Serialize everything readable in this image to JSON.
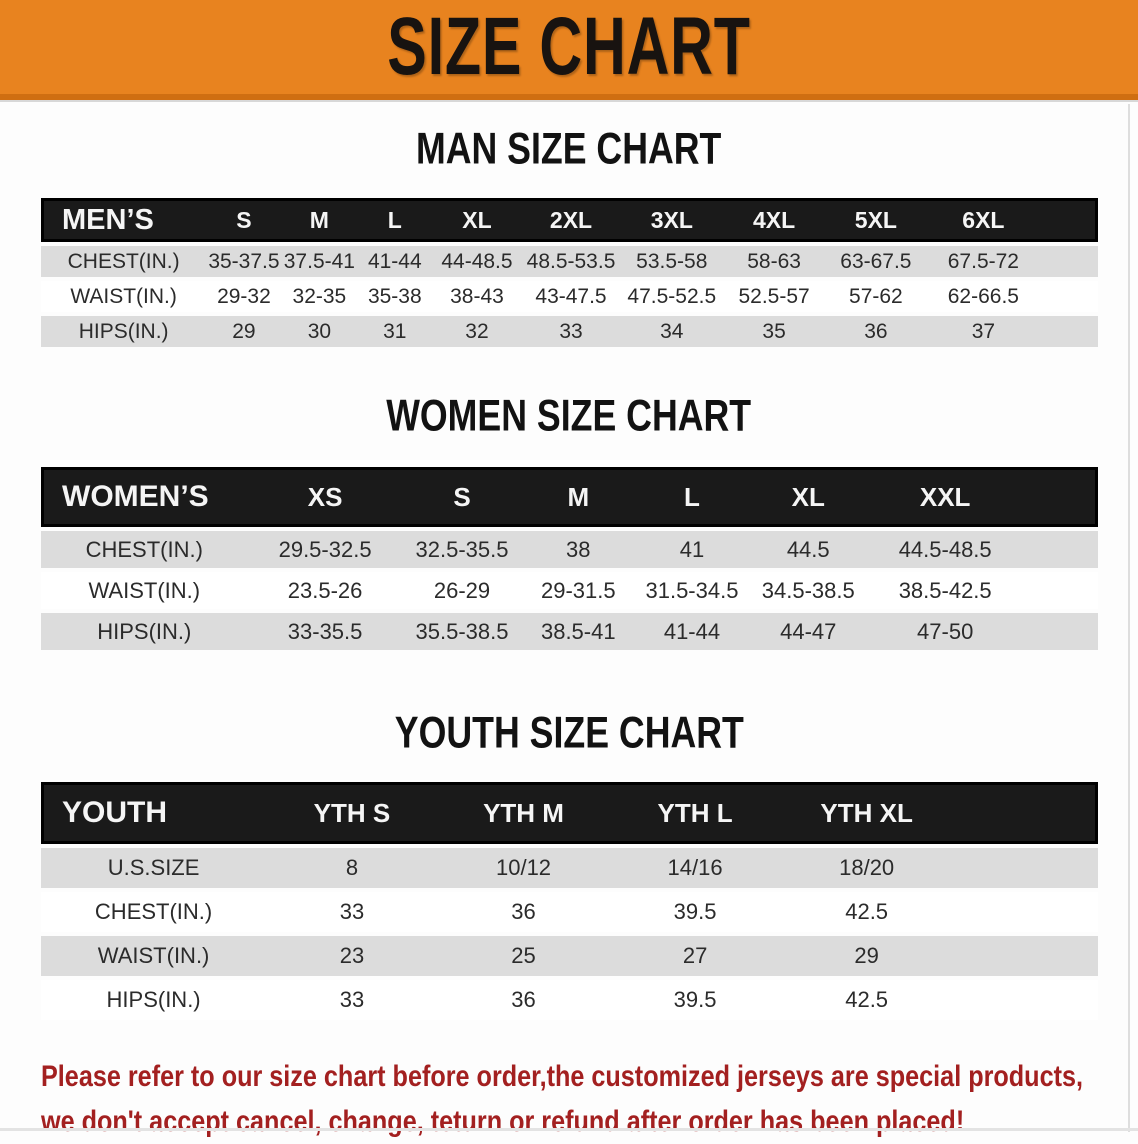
{
  "banner": {
    "title": "SIZE CHART",
    "bg_color": "#e8831f",
    "bg_edge_color": "#cf6e11",
    "text_color": "#181310"
  },
  "colors": {
    "header_bar": "#1a1a1a",
    "stripe": "#dcdcdc",
    "disclaimer_red": "#a32020"
  },
  "sections": [
    {
      "key": "men",
      "title": "MAN SIZE CHART",
      "header_label": "MEN’S",
      "columns": [
        "S",
        "M",
        "L",
        "XL",
        "2XL",
        "3XL",
        "4XL",
        "5XL",
        "6XL"
      ],
      "rows": [
        {
          "label": "CHEST(IN.)",
          "values": [
            "35-37.5",
            "37.5-41",
            "41-44",
            "44-48.5",
            "48.5-53.5",
            "53.5-58",
            "58-63",
            "63-67.5",
            "67.5-72"
          ]
        },
        {
          "label": "WAIST(IN.)",
          "values": [
            "29-32",
            "32-35",
            "35-38",
            "38-43",
            "43-47.5",
            "47.5-52.5",
            "52.5-57",
            "57-62",
            "62-66.5"
          ]
        },
        {
          "label": "HIPS(IN.)",
          "values": [
            "29",
            "30",
            "31",
            "32",
            "33",
            "34",
            "35",
            "36",
            "37"
          ]
        }
      ]
    },
    {
      "key": "women",
      "title": "WOMEN SIZE CHART",
      "header_label": "WOMEN’S",
      "columns": [
        "XS",
        "S",
        "M",
        "L",
        "XL",
        "XXL"
      ],
      "rows": [
        {
          "label": "CHEST(IN.)",
          "values": [
            "29.5-32.5",
            "32.5-35.5",
            "38",
            "41",
            "44.5",
            "44.5-48.5"
          ]
        },
        {
          "label": "WAIST(IN.)",
          "values": [
            "23.5-26",
            "26-29",
            "29-31.5",
            "31.5-34.5",
            "34.5-38.5",
            "38.5-42.5"
          ]
        },
        {
          "label": "HIPS(IN.)",
          "values": [
            "33-35.5",
            "35.5-38.5",
            "38.5-41",
            "41-44",
            "44-47",
            "47-50"
          ]
        }
      ]
    },
    {
      "key": "youth",
      "title": "YOUTH SIZE CHART",
      "header_label": "YOUTH",
      "columns": [
        "YTH S",
        "YTH M",
        "YTH L",
        "YTH XL"
      ],
      "rows": [
        {
          "label": "U.S.SIZE",
          "values": [
            "8",
            "10/12",
            "14/16",
            "18/20"
          ]
        },
        {
          "label": "CHEST(IN.)",
          "values": [
            "33",
            "36",
            "39.5",
            "42.5"
          ]
        },
        {
          "label": "WAIST(IN.)",
          "values": [
            "23",
            "25",
            "27",
            "29"
          ]
        },
        {
          "label": "HIPS(IN.)",
          "values": [
            "33",
            "36",
            "39.5",
            "42.5"
          ]
        }
      ]
    }
  ],
  "disclaimer": {
    "line1": "Please refer to our size chart before order,the customized jerseys are special products,",
    "line2": "we don't accept cancel, change, teturn or refund after order has been placed!"
  }
}
